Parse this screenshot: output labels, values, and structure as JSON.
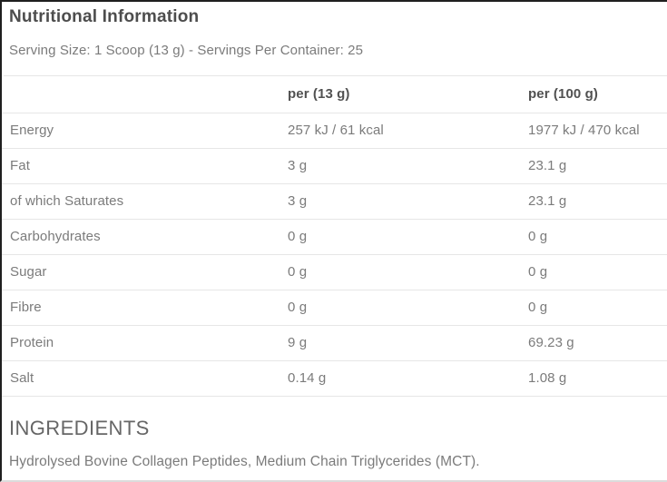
{
  "panel": {
    "title": "Nutritional Information",
    "serving_info": "Serving Size: 1 Scoop (13 g) - Servings Per Container: 25"
  },
  "table": {
    "columns": [
      "",
      "per (13 g)",
      "per (100 g)"
    ],
    "rows": [
      {
        "label": "Energy",
        "per_serving": "257 kJ / 61 kcal",
        "per_100g": "1977 kJ / 470 kcal"
      },
      {
        "label": "Fat",
        "per_serving": "3 g",
        "per_100g": "23.1 g"
      },
      {
        "label": "of which Saturates",
        "per_serving": "3 g",
        "per_100g": "23.1 g"
      },
      {
        "label": "Carbohydrates",
        "per_serving": "0 g",
        "per_100g": "0 g"
      },
      {
        "label": "Sugar",
        "per_serving": "0 g",
        "per_100g": "0 g"
      },
      {
        "label": "Fibre",
        "per_serving": "0 g",
        "per_100g": "0 g"
      },
      {
        "label": "Protein",
        "per_serving": "9 g",
        "per_100g": "69.23 g"
      },
      {
        "label": "Salt",
        "per_serving": "0.14 g",
        "per_100g": "1.08 g"
      }
    ]
  },
  "ingredients": {
    "heading": "INGREDIENTS",
    "text": "Hydrolysed Bovine Collagen Peptides, Medium Chain Triglycerides (MCT)."
  },
  "colors": {
    "panel_border_dark": "#1f1f1f",
    "row_divider": "#e6e6e6",
    "text_heading": "#4d4d4d",
    "text_body": "#7b7b7b",
    "bottom_divider": "#dcdcdc"
  }
}
